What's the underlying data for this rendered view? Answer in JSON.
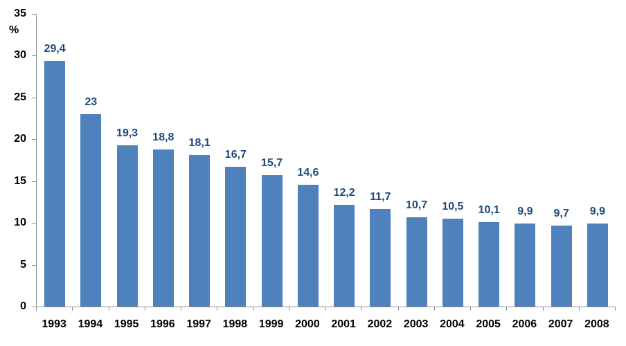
{
  "chart_data": {
    "type": "bar",
    "title": "",
    "xlabel": "",
    "ylabel": "%",
    "categories": [
      "1993",
      "1994",
      "1995",
      "1996",
      "1997",
      "1998",
      "1999",
      "2000",
      "2001",
      "2002",
      "2003",
      "2004",
      "2005",
      "2006",
      "2007",
      "2008"
    ],
    "values": [
      29.4,
      23,
      19.3,
      18.8,
      18.1,
      16.7,
      15.7,
      14.6,
      12.2,
      11.7,
      10.7,
      10.5,
      10.1,
      9.9,
      9.7,
      9.9
    ],
    "value_labels": [
      "29,4",
      "23",
      "19,3",
      "18,8",
      "18,1",
      "16,7",
      "15,7",
      "14,6",
      "12,2",
      "11,7",
      "10,7",
      "10,5",
      "10,1",
      "9,9",
      "9,7",
      "9,9"
    ],
    "ylim": [
      0,
      35
    ],
    "yticks": [
      0,
      5,
      10,
      15,
      20,
      25,
      30,
      35
    ],
    "grid": false,
    "legend": "none",
    "value_labels_position": "outside-end",
    "colors": {
      "bar_fill": "#4f81bd",
      "value_label": "#1f497d",
      "axis_line": "#8e8e8e",
      "tick_label": "#000000"
    }
  }
}
